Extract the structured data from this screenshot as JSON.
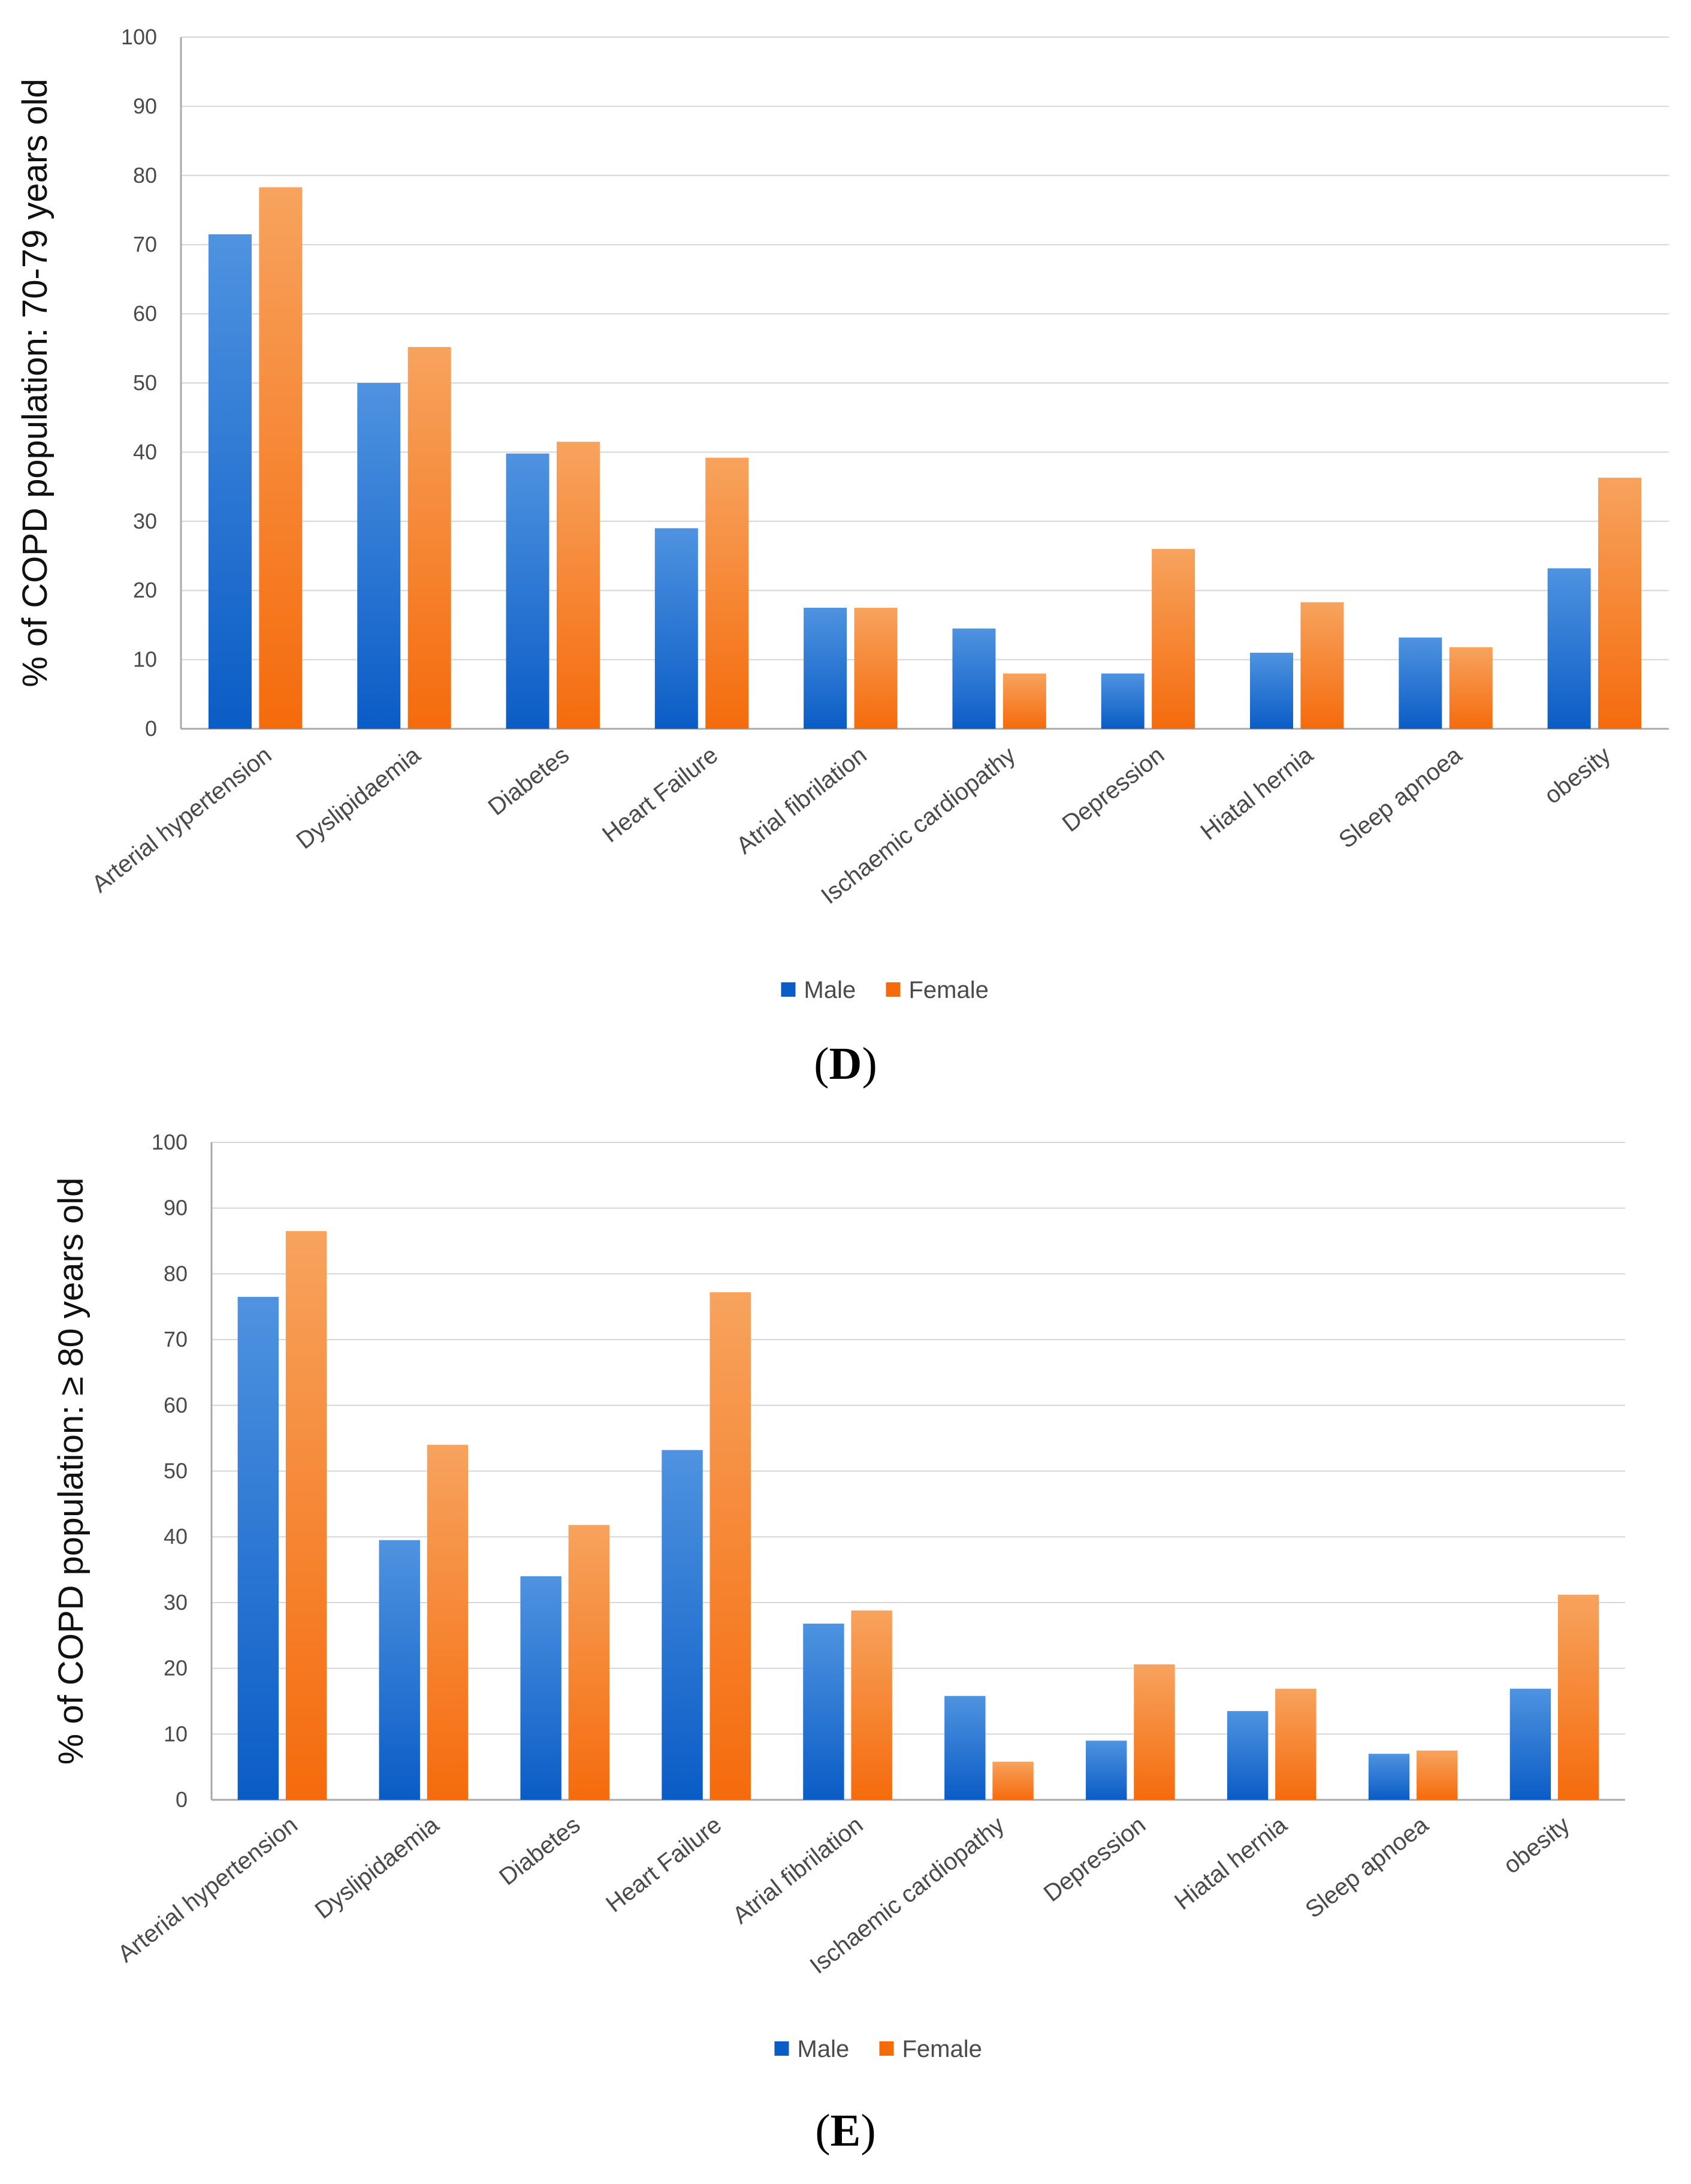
{
  "colors": {
    "male_top": "#4f93e0",
    "male_bottom": "#0a5cc6",
    "female_top": "#f7a35e",
    "female_bottom": "#f56b0c",
    "grid": "#d6d6d6",
    "axis": "#a9a9a9"
  },
  "chart_data": [
    {
      "type": "bar",
      "panel_label": "D",
      "categories": [
        "Arterial hypertension",
        "Dyslipidaemia",
        "Diabetes",
        "Heart Failure",
        "Atrial fibrilation",
        "Ischaemic cardiopathy",
        "Depression",
        "Hiatal hernia",
        "Sleep apnoea",
        "obesity"
      ],
      "series": [
        {
          "name": "Male",
          "values": [
            71.5,
            50,
            39.8,
            29,
            17.5,
            14.5,
            8,
            11,
            13.2,
            23.2
          ]
        },
        {
          "name": "Female",
          "values": [
            78.3,
            55.2,
            41.5,
            39.2,
            17.5,
            8,
            26,
            18.3,
            11.8,
            36.3
          ]
        }
      ],
      "ylabel": "% of COPD population: 70-79 years old",
      "ylim": [
        0,
        100
      ],
      "yticks": [
        0,
        10,
        20,
        30,
        40,
        50,
        60,
        70,
        80,
        90,
        100
      ],
      "grid": true,
      "legend_position": "bottom-center"
    },
    {
      "type": "bar",
      "panel_label": "E",
      "categories": [
        "Arterial hypertension",
        "Dyslipidaemia",
        "Diabetes",
        "Heart Failure",
        "Atrial fibrilation",
        "Ischaemic cardiopathy",
        "Depression",
        "Hiatal hernia",
        "Sleep apnoea",
        "obesity"
      ],
      "series": [
        {
          "name": "Male",
          "values": [
            76.5,
            39.5,
            34,
            53.2,
            26.8,
            15.8,
            9,
            13.5,
            7,
            16.9
          ]
        },
        {
          "name": "Female",
          "values": [
            86.5,
            54,
            41.8,
            77.2,
            28.8,
            5.8,
            20.6,
            16.9,
            7.5,
            31.2
          ]
        }
      ],
      "ylabel": "% of COPD population: ≥ 80 years old",
      "ylim": [
        0,
        100
      ],
      "yticks": [
        0,
        10,
        20,
        30,
        40,
        50,
        60,
        70,
        80,
        90,
        100
      ],
      "grid": true,
      "legend_position": "bottom-center"
    }
  ]
}
